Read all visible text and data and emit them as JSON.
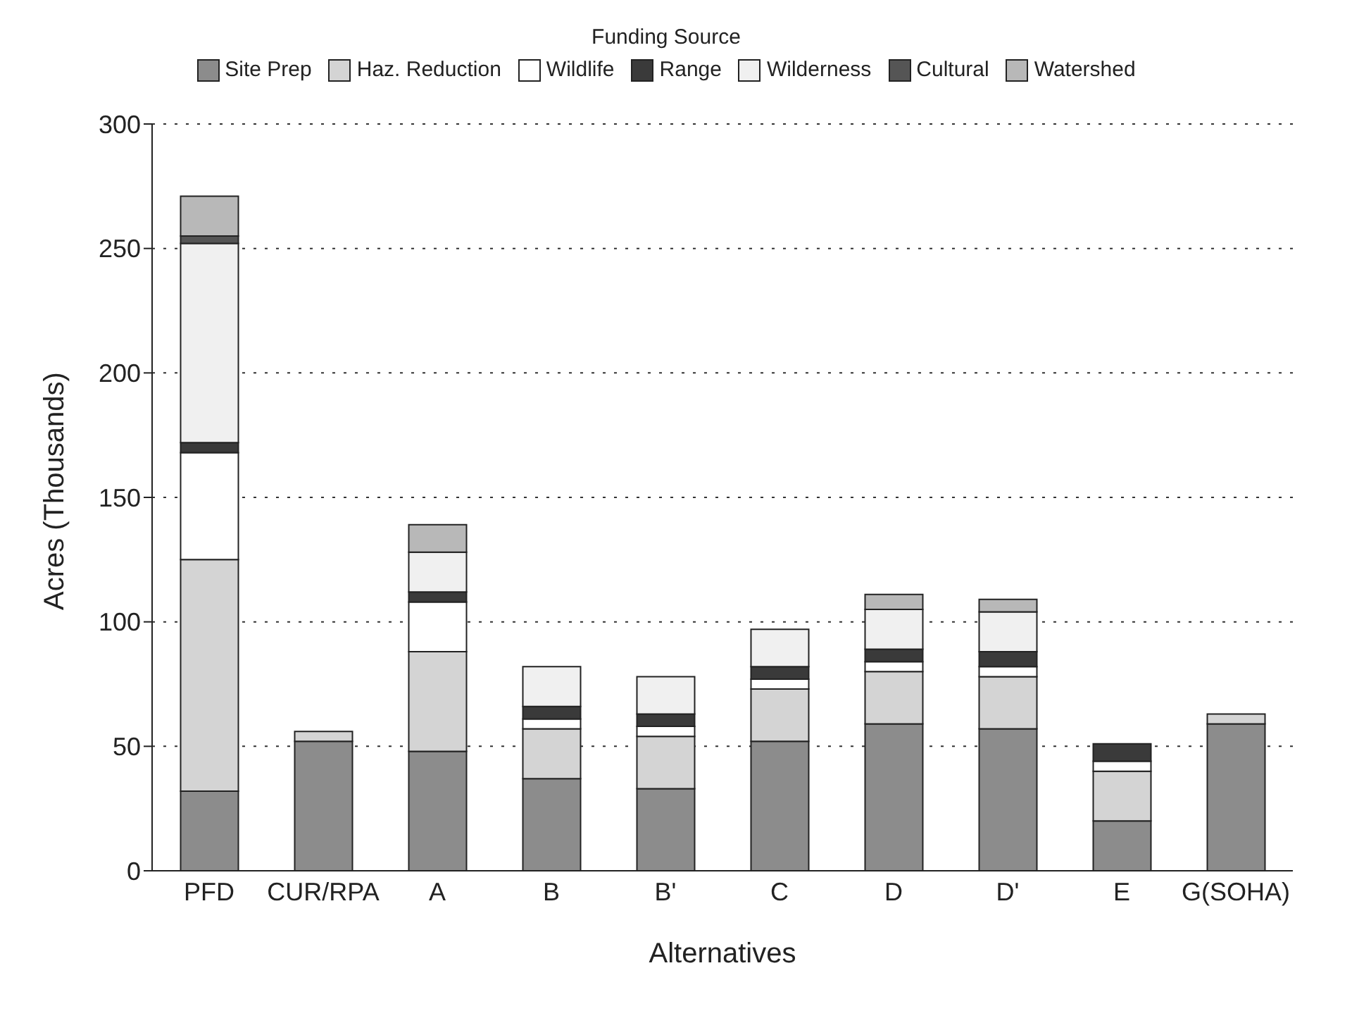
{
  "chart_data": {
    "type": "bar",
    "stacked": true,
    "legend_title": "Funding Source",
    "xlabel": "Alternatives",
    "ylabel": "Acres (Thousands)",
    "categories": [
      "PFD",
      "CUR/RPA",
      "A",
      "B",
      "B'",
      "C",
      "D",
      "D'",
      "E",
      "G(SOHA)"
    ],
    "series": [
      {
        "name": "Site Prep",
        "color": "#8c8c8c",
        "values": [
          32,
          52,
          48,
          37,
          33,
          52,
          59,
          57,
          20,
          59
        ]
      },
      {
        "name": "Haz. Reduction",
        "color": "#d4d4d4",
        "values": [
          93,
          4,
          40,
          20,
          21,
          21,
          21,
          21,
          20,
          4
        ]
      },
      {
        "name": "Wildlife",
        "color": "#ffffff",
        "values": [
          43,
          0,
          20,
          4,
          4,
          4,
          4,
          4,
          4,
          0
        ]
      },
      {
        "name": "Range",
        "color": "#3a3a3a",
        "values": [
          4,
          0,
          4,
          5,
          5,
          5,
          5,
          6,
          7,
          0
        ]
      },
      {
        "name": "Wilderness",
        "color": "#f0f0f0",
        "values": [
          80,
          0,
          16,
          16,
          15,
          15,
          16,
          16,
          0,
          0
        ]
      },
      {
        "name": "Cultural",
        "color": "#555555",
        "values": [
          3,
          0,
          0,
          0,
          0,
          0,
          0,
          0,
          0,
          0
        ]
      },
      {
        "name": "Watershed",
        "color": "#b8b8b8",
        "values": [
          16,
          0,
          11,
          0,
          0,
          0,
          6,
          5,
          0,
          0
        ]
      }
    ],
    "ylim": [
      0,
      300
    ],
    "yticks": [
      0,
      50,
      100,
      150,
      200,
      250,
      300
    ],
    "grid": "y",
    "legend": "top"
  }
}
